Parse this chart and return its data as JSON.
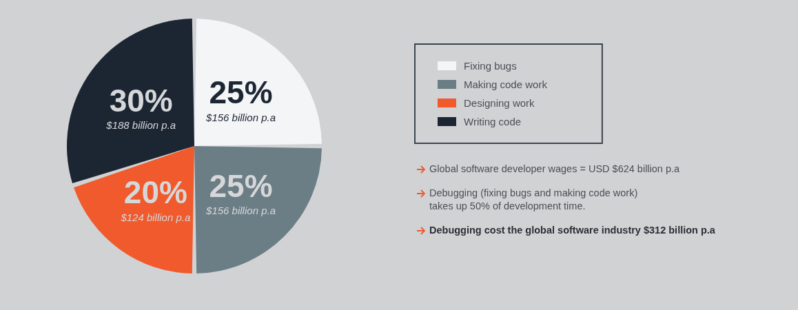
{
  "chart_data": {
    "type": "pie",
    "categories": [
      "Fixing bugs",
      "Making code work",
      "Designing work",
      "Writing code"
    ],
    "values": [
      25,
      25,
      20,
      30
    ],
    "colors": [
      "#f4f5f7",
      "#6b7d85",
      "#f05a2c",
      "#1c2633"
    ],
    "value_labels": [
      "25%\n$156 billion p.a",
      "25%\n$156 billion p.a",
      "20%\n$124 billion p.a",
      "30%\n$188 billion p.a"
    ],
    "legend": "right",
    "annotations": [
      "Global software developer wages = USD $624 billion p.a",
      "Debugging (fixing bugs and making code work)\ntakes up 50% of development time.",
      "Debugging cost the global software industry $312 billion p.a"
    ]
  }
}
